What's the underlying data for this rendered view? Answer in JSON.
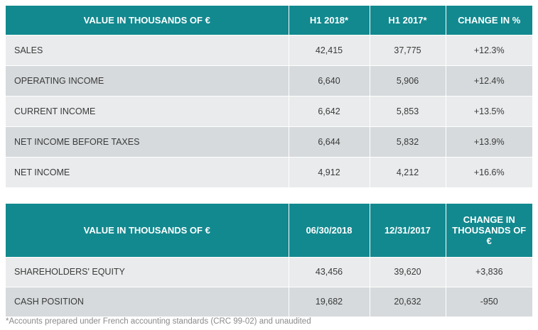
{
  "income_table": {
    "headers": [
      "VALUE IN THOUSANDS OF €",
      "H1 2018*",
      "H1 2017*",
      "CHANGE IN %"
    ],
    "rows": [
      [
        "SALES",
        "42,415",
        "37,775",
        "+12.3%"
      ],
      [
        "OPERATING INCOME",
        "6,640",
        "5,906",
        "+12.4%"
      ],
      [
        "CURRENT INCOME",
        "6,642",
        "5,853",
        "+13.5%"
      ],
      [
        "NET INCOME BEFORE TAXES",
        "6,644",
        "5,832",
        "+13.9%"
      ],
      [
        "NET INCOME",
        "4,912",
        "4,212",
        "+16.6%"
      ]
    ]
  },
  "balance_table": {
    "headers": [
      "VALUE IN THOUSANDS OF €",
      "06/30/2018",
      "12/31/2017",
      "CHANGE IN THOUSANDS OF €"
    ],
    "rows": [
      [
        "SHAREHOLDERS' EQUITY",
        "43,456",
        "39,620",
        "+3,836"
      ],
      [
        "CASH POSITION",
        "19,682",
        "20,632",
        "-950"
      ]
    ]
  },
  "footnote": "*Accounts prepared under French accounting standards (CRC 99-02) and unaudited",
  "colors": {
    "header_bg": "#12898f",
    "row_light": "#e9ebec",
    "row_dark": "#d6dadc"
  }
}
